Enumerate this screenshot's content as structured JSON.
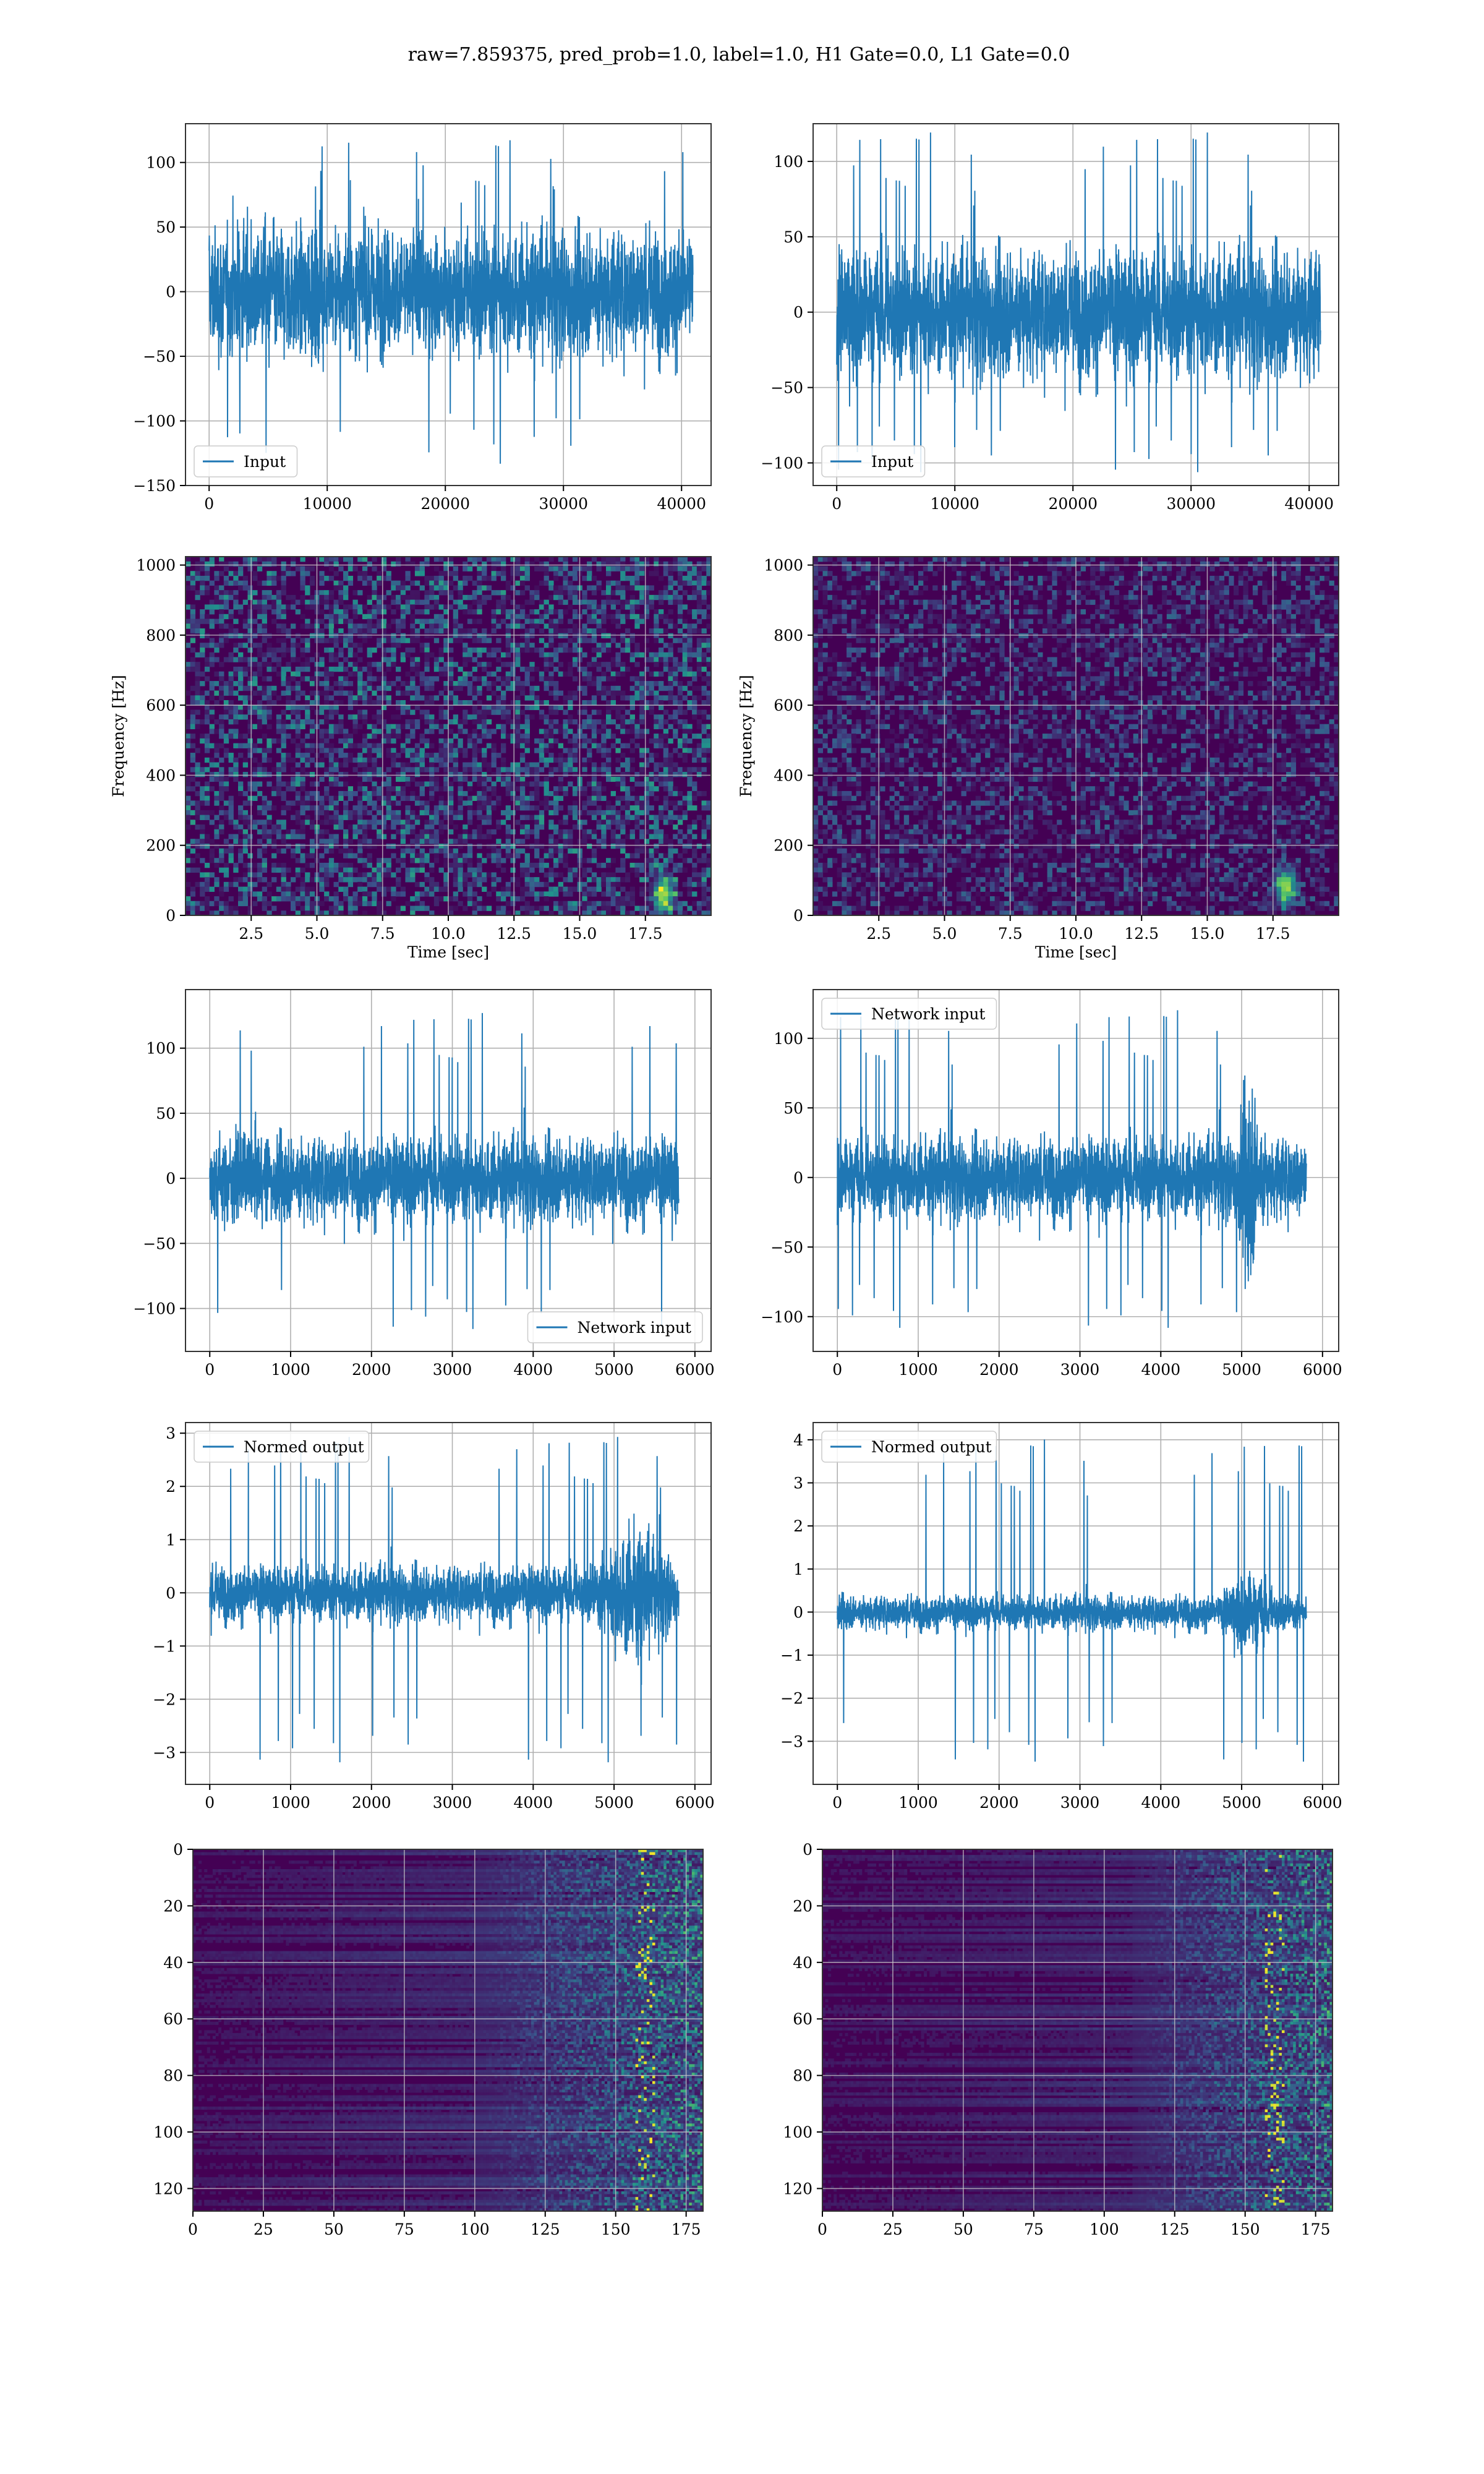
{
  "figure": {
    "suptitle": "raw=7.859375, pred_prob=1.0, label=1.0, H1 Gate=0.0, L1 Gate=0.0"
  },
  "colors": {
    "line": "#1f77b4",
    "grid": "#b0b0b0",
    "viridis_low": "#440154",
    "viridis_mid": "#21918c",
    "viridis_high": "#fde725"
  },
  "chart_data": [
    {
      "id": "h1-input",
      "type": "line",
      "series": [
        {
          "name": "Input"
        }
      ],
      "xlim": [
        -2000,
        42500
      ],
      "ylim": [
        -150,
        130
      ],
      "xticks": [
        0,
        10000,
        20000,
        30000,
        40000
      ],
      "yticks": [
        -150,
        -100,
        -50,
        0,
        50,
        100
      ],
      "xtick_labels": [
        "0",
        "10000",
        "20000",
        "30000",
        "40000"
      ],
      "ytick_labels": [
        "−150",
        "−100",
        "−50",
        "0",
        "50",
        "100"
      ],
      "legend": "lower-left",
      "grid": true,
      "x_extent": [
        0,
        40960
      ],
      "envelope_abs": 75,
      "peak_max": 120,
      "peak_min": -138
    },
    {
      "id": "l1-input",
      "type": "line",
      "series": [
        {
          "name": "Input"
        }
      ],
      "xlim": [
        -2000,
        42500
      ],
      "ylim": [
        -115,
        125
      ],
      "xticks": [
        0,
        10000,
        20000,
        30000,
        40000
      ],
      "yticks": [
        -100,
        -50,
        0,
        50,
        100
      ],
      "xtick_labels": [
        "0",
        "10000",
        "20000",
        "30000",
        "40000"
      ],
      "ytick_labels": [
        "−100",
        "−50",
        "0",
        "50",
        "100"
      ],
      "legend": "lower-left",
      "grid": true,
      "x_extent": [
        0,
        40960
      ],
      "envelope_abs": 65,
      "peak_max": 122,
      "peak_min": -110
    },
    {
      "id": "h1-spectrogram",
      "type": "heatmap",
      "xlabel": "Time [sec]",
      "ylabel": "Frequency [Hz]",
      "xlim": [
        0,
        20
      ],
      "ylim": [
        0,
        1024
      ],
      "xticks": [
        2.5,
        5.0,
        7.5,
        10.0,
        12.5,
        15.0,
        17.5
      ],
      "yticks": [
        0,
        200,
        400,
        600,
        800,
        1000
      ],
      "xtick_labels": [
        "2.5",
        "5.0",
        "7.5",
        "10.0",
        "12.5",
        "15.0",
        "17.5"
      ],
      "ytick_labels": [
        "0",
        "200",
        "400",
        "600",
        "800",
        "1000"
      ],
      "grid": true,
      "colormap": "viridis",
      "hotspot": [
        18.2,
        60
      ]
    },
    {
      "id": "l1-spectrogram",
      "type": "heatmap",
      "xlabel": "Time [sec]",
      "ylabel": "Frequency [Hz]",
      "xlim": [
        0,
        20
      ],
      "ylim": [
        0,
        1024
      ],
      "xticks": [
        2.5,
        5.0,
        7.5,
        10.0,
        12.5,
        15.0,
        17.5
      ],
      "yticks": [
        0,
        200,
        400,
        600,
        800,
        1000
      ],
      "xtick_labels": [
        "2.5",
        "5.0",
        "7.5",
        "10.0",
        "12.5",
        "15.0",
        "17.5"
      ],
      "ytick_labels": [
        "0",
        "200",
        "400",
        "600",
        "800",
        "1000"
      ],
      "grid": true,
      "colormap": "viridis",
      "hotspot": [
        18.0,
        80
      ]
    },
    {
      "id": "h1-network-input",
      "type": "line",
      "series": [
        {
          "name": "Network input"
        }
      ],
      "xlim": [
        -300,
        6200
      ],
      "ylim": [
        -133,
        145
      ],
      "xticks": [
        0,
        1000,
        2000,
        3000,
        4000,
        5000,
        6000
      ],
      "yticks": [
        -100,
        -50,
        0,
        50,
        100
      ],
      "xtick_labels": [
        "0",
        "1000",
        "2000",
        "3000",
        "4000",
        "5000",
        "6000"
      ],
      "ytick_labels": [
        "−100",
        "−50",
        "0",
        "50",
        "100"
      ],
      "legend": "lower-right",
      "grid": true,
      "x_extent": [
        0,
        5800
      ],
      "envelope_abs": 50,
      "peak_max": 130,
      "peak_min": -120
    },
    {
      "id": "l1-network-input",
      "type": "line",
      "series": [
        {
          "name": "Network input"
        }
      ],
      "xlim": [
        -300,
        6200
      ],
      "ylim": [
        -125,
        135
      ],
      "xticks": [
        0,
        1000,
        2000,
        3000,
        4000,
        5000,
        6000
      ],
      "yticks": [
        -100,
        -50,
        0,
        50,
        100
      ],
      "xtick_labels": [
        "0",
        "1000",
        "2000",
        "3000",
        "4000",
        "5000",
        "6000"
      ],
      "ytick_labels": [
        "−100",
        "−50",
        "0",
        "50",
        "100"
      ],
      "legend": "upper-left",
      "grid": true,
      "x_extent": [
        0,
        5800
      ],
      "envelope_abs": 45,
      "peak_max": 123,
      "peak_min": -112,
      "burst": [
        4900,
        5300
      ]
    },
    {
      "id": "h1-normed-output",
      "type": "line",
      "series": [
        {
          "name": "Normed output"
        }
      ],
      "xlim": [
        -300,
        6200
      ],
      "ylim": [
        -3.6,
        3.2
      ],
      "xticks": [
        0,
        1000,
        2000,
        3000,
        4000,
        5000,
        6000
      ],
      "yticks": [
        -3,
        -2,
        -1,
        0,
        1,
        2,
        3
      ],
      "xtick_labels": [
        "0",
        "1000",
        "2000",
        "3000",
        "4000",
        "5000",
        "6000"
      ],
      "ytick_labels": [
        "−3",
        "−2",
        "−1",
        "0",
        "1",
        "2",
        "3"
      ],
      "legend": "upper-left",
      "grid": true,
      "x_extent": [
        0,
        5800
      ],
      "envelope_abs": 0.8,
      "peak_max": 3.0,
      "peak_min": -3.3,
      "burst": [
        4700,
        5800
      ]
    },
    {
      "id": "l1-normed-output",
      "type": "line",
      "series": [
        {
          "name": "Normed output"
        }
      ],
      "xlim": [
        -300,
        6200
      ],
      "ylim": [
        -4.0,
        4.4
      ],
      "xticks": [
        0,
        1000,
        2000,
        3000,
        4000,
        5000,
        6000
      ],
      "yticks": [
        -3,
        -2,
        -1,
        0,
        1,
        2,
        3,
        4
      ],
      "xtick_labels": [
        "0",
        "1000",
        "2000",
        "3000",
        "4000",
        "5000",
        "6000"
      ],
      "ytick_labels": [
        "−3",
        "−2",
        "−1",
        "0",
        "1",
        "2",
        "3",
        "4"
      ],
      "legend": "upper-left",
      "grid": true,
      "x_extent": [
        0,
        5800
      ],
      "envelope_abs": 0.6,
      "peak_max": 4.1,
      "peak_min": -3.6,
      "burst": [
        4700,
        5500
      ]
    },
    {
      "id": "h1-features",
      "type": "heatmap",
      "xlim": [
        0,
        181
      ],
      "ylim": [
        128,
        0
      ],
      "xticks": [
        0,
        25,
        50,
        75,
        100,
        125,
        150,
        175
      ],
      "yticks": [
        0,
        20,
        40,
        60,
        80,
        100,
        120
      ],
      "xtick_labels": [
        "0",
        "25",
        "50",
        "75",
        "100",
        "125",
        "150",
        "175"
      ],
      "ytick_labels": [
        "0",
        "20",
        "40",
        "60",
        "80",
        "100",
        "120"
      ],
      "grid": true,
      "colormap": "viridis",
      "active_from": 100,
      "hot_column": 160
    },
    {
      "id": "l1-features",
      "type": "heatmap",
      "xlim": [
        0,
        181
      ],
      "ylim": [
        128,
        0
      ],
      "xticks": [
        0,
        25,
        50,
        75,
        100,
        125,
        150,
        175
      ],
      "yticks": [
        0,
        20,
        40,
        60,
        80,
        100,
        120
      ],
      "xtick_labels": [
        "0",
        "25",
        "50",
        "75",
        "100",
        "125",
        "150",
        "175"
      ],
      "ytick_labels": [
        "0",
        "20",
        "40",
        "60",
        "80",
        "100",
        "120"
      ],
      "grid": true,
      "colormap": "viridis",
      "active_from": 110,
      "hot_column": 160
    }
  ]
}
